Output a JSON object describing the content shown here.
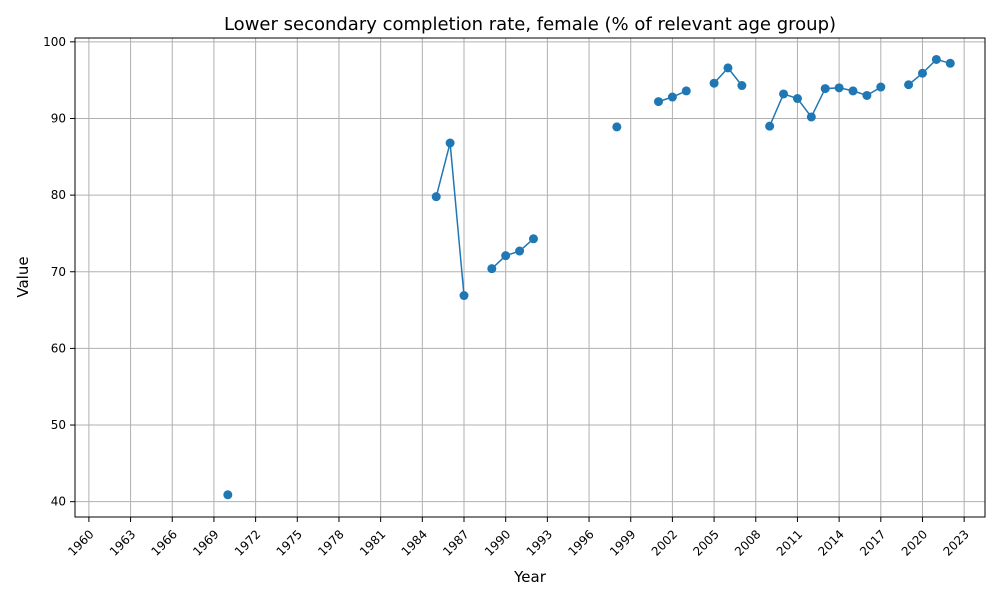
{
  "chart_data": {
    "type": "line",
    "title": "Lower secondary completion rate, female (% of relevant age group)",
    "xlabel": "Year",
    "ylabel": "Value",
    "xlim": [
      1959,
      2024.5
    ],
    "ylim": [
      38,
      100.5
    ],
    "grid": true,
    "marker": "circle",
    "line_color": "#1f77b4",
    "x_ticks": [
      1960,
      1963,
      1966,
      1969,
      1972,
      1975,
      1978,
      1981,
      1984,
      1987,
      1990,
      1993,
      1996,
      1999,
      2002,
      2005,
      2008,
      2011,
      2014,
      2017,
      2020,
      2023
    ],
    "y_ticks": [
      40,
      50,
      60,
      70,
      80,
      90,
      100
    ],
    "points": [
      {
        "x": 1970,
        "y": 40.9
      },
      {
        "x": 1985,
        "y": 79.8
      },
      {
        "x": 1986,
        "y": 86.8
      },
      {
        "x": 1987,
        "y": 66.9
      },
      {
        "x": 1989,
        "y": 70.4
      },
      {
        "x": 1990,
        "y": 72.1
      },
      {
        "x": 1991,
        "y": 72.7
      },
      {
        "x": 1992,
        "y": 74.3
      },
      {
        "x": 1998,
        "y": 88.9
      },
      {
        "x": 2001,
        "y": 92.2
      },
      {
        "x": 2002,
        "y": 92.8
      },
      {
        "x": 2003,
        "y": 93.6
      },
      {
        "x": 2005,
        "y": 94.6
      },
      {
        "x": 2006,
        "y": 96.6
      },
      {
        "x": 2007,
        "y": 94.3
      },
      {
        "x": 2009,
        "y": 89.0
      },
      {
        "x": 2010,
        "y": 93.2
      },
      {
        "x": 2011,
        "y": 92.6
      },
      {
        "x": 2012,
        "y": 90.2
      },
      {
        "x": 2013,
        "y": 93.9
      },
      {
        "x": 2014,
        "y": 94.0
      },
      {
        "x": 2015,
        "y": 93.6
      },
      {
        "x": 2016,
        "y": 93.0
      },
      {
        "x": 2017,
        "y": 94.1
      },
      {
        "x": 2019,
        "y": 94.4
      },
      {
        "x": 2020,
        "y": 95.9
      },
      {
        "x": 2021,
        "y": 97.7
      },
      {
        "x": 2022,
        "y": 97.2
      }
    ]
  }
}
